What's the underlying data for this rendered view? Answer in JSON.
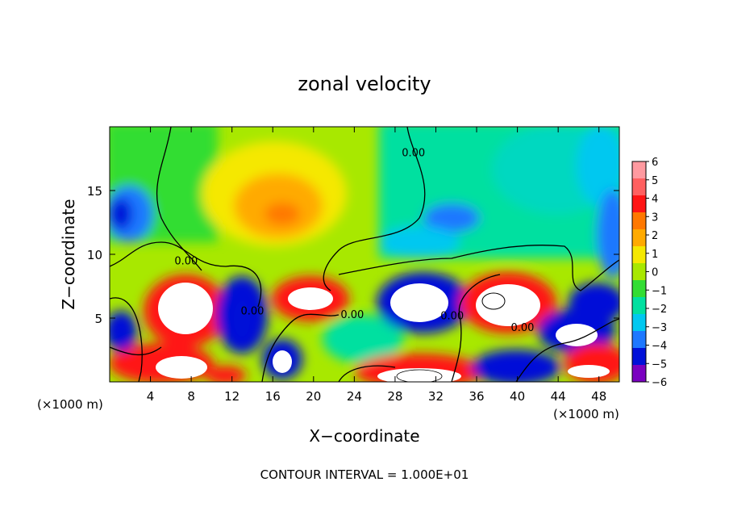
{
  "chart_data": {
    "type": "heatmap",
    "title": "zonal velocity",
    "xlabel": "X−coordinate",
    "ylabel": "Z−coordinate",
    "x_unit_left": "(×1000 m)",
    "x_unit_right": "(×1000 m)",
    "footer": "CONTOUR INTERVAL = 1.000E+01",
    "xlim": [
      0,
      50
    ],
    "ylim": [
      0,
      20
    ],
    "x_ticks": [
      4,
      8,
      12,
      16,
      20,
      24,
      28,
      32,
      36,
      40,
      44,
      48
    ],
    "x_tick_labels": [
      "4",
      "8",
      "12",
      "16",
      "20",
      "24",
      "28",
      "32",
      "36",
      "40",
      "44",
      "48"
    ],
    "y_ticks": [
      5,
      10,
      15
    ],
    "y_tick_labels": [
      "5",
      "10",
      "15"
    ],
    "colorbar": {
      "min": -6,
      "max": 6,
      "labels": [
        "6",
        "5",
        "4",
        "3",
        "2",
        "1",
        "0",
        "−1",
        "−2",
        "−3",
        "−4",
        "−5",
        "−6"
      ],
      "colors": [
        "#ff9aa0",
        "#ff6060",
        "#ff1414",
        "#ff7800",
        "#ffaa00",
        "#f5e800",
        "#a8e800",
        "#33dd33",
        "#00e0a0",
        "#00c8f0",
        "#1e78ff",
        "#0010d8",
        "#7a00c0"
      ]
    },
    "contour_labels": [
      {
        "text": "0.00",
        "x": 7.5,
        "y": 9.2
      },
      {
        "text": "0.00",
        "x": 14.0,
        "y": 5.3
      },
      {
        "text": "0.00",
        "x": 23.8,
        "y": 5.0
      },
      {
        "text": "0.00",
        "x": 29.8,
        "y": 17.7
      },
      {
        "text": "0.00",
        "x": 33.6,
        "y": 4.9
      },
      {
        "text": "0.00",
        "x": 40.5,
        "y": 4.0
      }
    ]
  }
}
